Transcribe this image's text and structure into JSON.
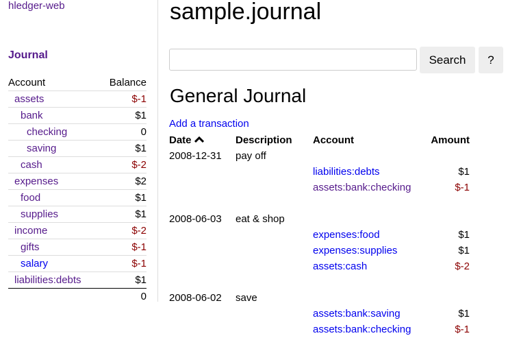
{
  "sidebar": {
    "brand": "hledger-web",
    "journal_link": "Journal",
    "headers": {
      "account": "Account",
      "balance": "Balance"
    },
    "accounts": [
      {
        "name": "assets",
        "balance": "$-1",
        "depth": 1,
        "neg": true,
        "visited": true
      },
      {
        "name": "bank",
        "balance": "$1",
        "depth": 2,
        "neg": false,
        "visited": true
      },
      {
        "name": "checking",
        "balance": "0",
        "depth": 3,
        "neg": false,
        "visited": true
      },
      {
        "name": "saving",
        "balance": "$1",
        "depth": 3,
        "neg": false,
        "visited": true
      },
      {
        "name": "cash",
        "balance": "$-2",
        "depth": 2,
        "neg": true,
        "visited": true
      },
      {
        "name": "expenses",
        "balance": "$2",
        "depth": 1,
        "neg": false,
        "visited": true
      },
      {
        "name": "food",
        "balance": "$1",
        "depth": 2,
        "neg": false,
        "visited": true
      },
      {
        "name": "supplies",
        "balance": "$1",
        "depth": 2,
        "neg": false,
        "visited": true
      },
      {
        "name": "income",
        "balance": "$-2",
        "depth": 1,
        "neg": true,
        "visited": true
      },
      {
        "name": "gifts",
        "balance": "$-1",
        "depth": 2,
        "neg": true,
        "visited": true
      },
      {
        "name": "salary",
        "balance": "$-1",
        "depth": 2,
        "neg": true,
        "visited": false
      },
      {
        "name": "liabilities:debts",
        "balance": "$1",
        "depth": 1,
        "neg": false,
        "visited": true
      }
    ],
    "total": "0"
  },
  "header": {
    "title": "sample.journal"
  },
  "search": {
    "value": "",
    "placeholder": "",
    "button": "Search",
    "help": "?"
  },
  "journal": {
    "title": "General Journal",
    "add_link": "Add a transaction",
    "columns": {
      "date": "Date",
      "description": "Description",
      "account": "Account",
      "amount": "Amount"
    },
    "sort_icon": "chevron-up-icon",
    "transactions": [
      {
        "date": "2008-12-31",
        "description": "pay off",
        "postings": [
          {
            "account": "liabilities:debts",
            "amount": "$1",
            "neg": false,
            "visited": false
          },
          {
            "account": "assets:bank:checking",
            "amount": "$-1",
            "neg": true,
            "visited": true
          }
        ]
      },
      {
        "date": "2008-06-03",
        "description": "eat & shop",
        "postings": [
          {
            "account": "expenses:food",
            "amount": "$1",
            "neg": false,
            "visited": false
          },
          {
            "account": "expenses:supplies",
            "amount": "$1",
            "neg": false,
            "visited": false
          },
          {
            "account": "assets:cash",
            "amount": "$-2",
            "neg": true,
            "visited": false
          }
        ]
      },
      {
        "date": "2008-06-02",
        "description": "save",
        "postings": [
          {
            "account": "assets:bank:saving",
            "amount": "$1",
            "neg": false,
            "visited": false
          },
          {
            "account": "assets:bank:checking",
            "amount": "$-1",
            "neg": true,
            "visited": false
          }
        ]
      }
    ]
  },
  "colors": {
    "visited_link": "#551a8b",
    "link": "#0000ee",
    "negative": "#8b0000"
  }
}
